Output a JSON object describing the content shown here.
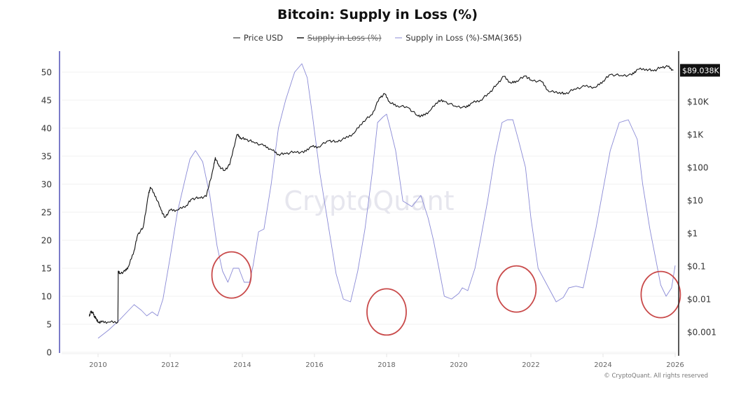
{
  "title": "Bitcoin: Supply in Loss (%)",
  "legend": [
    {
      "label": "Price USD",
      "color": "#888888",
      "disabled": false
    },
    {
      "label": "Supply in Loss (%)",
      "color": "#555555",
      "disabled": true
    },
    {
      "label": "Supply in Loss (%)-SMA(365)",
      "color": "#c5c5ea",
      "disabled": false
    }
  ],
  "watermark": "CryptoQuant",
  "copyright": "© CryptoQuant. All rights reserved",
  "colors": {
    "price": "#111111",
    "sma": "#8a8ad6",
    "left_axis": "#7b7bc8",
    "right_axis": "#222222",
    "grid": "#f0f0f0",
    "circle": "#c94a4a",
    "price_label_bg": "#111111"
  },
  "chart_data": {
    "type": "line",
    "title": "Bitcoin: Supply in Loss (%)",
    "xlabel": "",
    "ylabel": "",
    "xlim": [
      2009.0,
      2026.0
    ],
    "x_ticks": [
      "2010",
      "2012",
      "2014",
      "2016",
      "2018",
      "2020",
      "2022",
      "2024",
      "2026"
    ],
    "x_tick_values": [
      2010,
      2012,
      2014,
      2016,
      2018,
      2020,
      2022,
      2024,
      2026
    ],
    "ylim_left": [
      0,
      53
    ],
    "y_ticks_left": [
      "0",
      "5",
      "10",
      "15",
      "20",
      "25",
      "30",
      "35",
      "40",
      "45",
      "50"
    ],
    "y_tick_values_left": [
      0,
      5,
      10,
      15,
      20,
      25,
      30,
      35,
      40,
      45,
      50
    ],
    "y_scale_right": "log",
    "y_ticks_right": [
      "$0.001",
      "$0.01",
      "$0.1",
      "$1",
      "$10",
      "$100",
      "$1K",
      "$10K"
    ],
    "y_tick_values_right": [
      0.001,
      0.01,
      0.1,
      1,
      10,
      100,
      1000,
      10000
    ],
    "current_price_label": "$89.038K",
    "current_price": 89038,
    "grid": true,
    "legend_position": "top",
    "series": [
      {
        "name": "Supply in Loss (%)-SMA(365)",
        "axis": "left",
        "x": [
          2010.0,
          2010.3,
          2010.6,
          2010.85,
          2011.0,
          2011.2,
          2011.35,
          2011.5,
          2011.65,
          2011.8,
          2012.0,
          2012.2,
          2012.4,
          2012.55,
          2012.7,
          2012.9,
          2013.1,
          2013.3,
          2013.45,
          2013.6,
          2013.75,
          2013.9,
          2014.05,
          2014.2,
          2014.3,
          2014.45,
          2014.6,
          2014.8,
          2015.0,
          2015.2,
          2015.45,
          2015.65,
          2015.8,
          2015.95,
          2016.15,
          2016.4,
          2016.6,
          2016.8,
          2017.0,
          2017.2,
          2017.4,
          2017.6,
          2017.75,
          2017.9,
          2018.0,
          2018.1,
          2018.25,
          2018.45,
          2018.7,
          2018.95,
          2019.15,
          2019.3,
          2019.45,
          2019.6,
          2019.8,
          2020.0,
          2020.1,
          2020.25,
          2020.45,
          2020.6,
          2020.8,
          2021.0,
          2021.2,
          2021.35,
          2021.5,
          2021.65,
          2021.85,
          2022.0,
          2022.2,
          2022.45,
          2022.7,
          2022.9,
          2023.05,
          2023.25,
          2023.45,
          2023.6,
          2023.8,
          2024.0,
          2024.2,
          2024.45,
          2024.7,
          2024.95,
          2025.1,
          2025.3,
          2025.45,
          2025.6,
          2025.75,
          2025.9,
          2026.0
        ],
        "values": [
          2.5,
          4.0,
          5.8,
          7.5,
          8.5,
          7.5,
          6.5,
          7.2,
          6.5,
          9.5,
          17.0,
          25.0,
          30.5,
          34.5,
          36.0,
          34.0,
          28.0,
          19.0,
          14.5,
          12.5,
          15.0,
          15.0,
          12.5,
          12.5,
          15.5,
          21.5,
          22.0,
          30.0,
          40.0,
          45.0,
          50.0,
          51.5,
          49.0,
          42.0,
          32.0,
          22.0,
          14.0,
          9.5,
          9.0,
          14.5,
          22.0,
          32.0,
          41.0,
          42.0,
          42.5,
          40.0,
          36.0,
          27.0,
          26.0,
          28.0,
          24.0,
          20.0,
          15.0,
          10.0,
          9.5,
          10.5,
          11.5,
          11.0,
          15.0,
          20.0,
          27.0,
          35.0,
          41.0,
          41.5,
          41.5,
          38.0,
          33.0,
          24.0,
          15.0,
          12.0,
          9.0,
          9.8,
          11.5,
          11.8,
          11.5,
          16.0,
          22.0,
          29.0,
          36.0,
          41.0,
          41.5,
          38.0,
          30.0,
          22.0,
          17.0,
          12.0,
          10.0,
          11.5,
          15.5
        ]
      },
      {
        "name": "Price USD",
        "axis": "right",
        "x": [
          2009.75,
          2009.8,
          2009.85,
          2009.9,
          2009.95,
          2010.0,
          2010.1,
          2010.3,
          2010.55,
          2010.56,
          2010.6,
          2010.75,
          2010.85,
          2011.0,
          2011.1,
          2011.25,
          2011.4,
          2011.45,
          2011.6,
          2011.75,
          2011.85,
          2012.0,
          2012.2,
          2012.45,
          2012.6,
          2012.8,
          2013.0,
          2013.2,
          2013.25,
          2013.35,
          2013.5,
          2013.65,
          2013.85,
          2013.95,
          2014.1,
          2014.3,
          2014.6,
          2014.8,
          2015.0,
          2015.2,
          2015.45,
          2015.7,
          2015.9,
          2016.1,
          2016.4,
          2016.6,
          2016.85,
          2017.1,
          2017.35,
          2017.6,
          2017.8,
          2017.95,
          2018.1,
          2018.3,
          2018.6,
          2018.85,
          2019.0,
          2019.2,
          2019.45,
          2019.6,
          2019.9,
          2020.2,
          2020.35,
          2020.6,
          2020.85,
          2021.05,
          2021.25,
          2021.45,
          2021.6,
          2021.85,
          2022.0,
          2022.3,
          2022.5,
          2022.8,
          2022.95,
          2023.2,
          2023.5,
          2023.8,
          2024.0,
          2024.2,
          2024.5,
          2024.8,
          2024.95,
          2025.2,
          2025.4,
          2025.6,
          2025.8,
          2025.95
        ],
        "values": [
          0.003,
          0.004,
          0.004,
          0.003,
          0.0025,
          0.002,
          0.002,
          0.002,
          0.002,
          0.07,
          0.06,
          0.07,
          0.1,
          0.3,
          0.9,
          1.5,
          15,
          25,
          13,
          5,
          3,
          5,
          5,
          7,
          11,
          12,
          13,
          100,
          200,
          110,
          80,
          120,
          1000,
          800,
          700,
          600,
          450,
          350,
          250,
          260,
          300,
          280,
          430,
          420,
          650,
          600,
          750,
          1100,
          2500,
          4000,
          13000,
          17000,
          9000,
          7500,
          6500,
          3800,
          3600,
          5200,
          11000,
          10000,
          7300,
          6500,
          9000,
          11000,
          18000,
          33000,
          58000,
          36000,
          42000,
          60000,
          45000,
          40000,
          20000,
          19000,
          16800,
          24000,
          29000,
          27000,
          42000,
          66000,
          62000,
          64000,
          95000,
          97000,
          85000,
          110000,
          115000,
          89038
        ]
      }
    ],
    "annotations": [
      {
        "type": "circle",
        "label": "",
        "x": 2013.7,
        "y": 13.8
      },
      {
        "type": "circle",
        "label": "",
        "x": 2018.0,
        "y": 7.2
      },
      {
        "type": "circle",
        "label": "",
        "x": 2021.6,
        "y": 11.3
      },
      {
        "type": "circle",
        "label": "",
        "x": 2025.6,
        "y": 10.3
      }
    ]
  }
}
